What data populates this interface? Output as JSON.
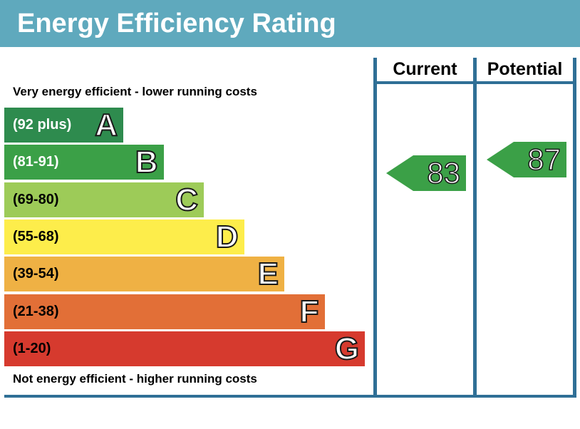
{
  "chart_data": {
    "type": "bar",
    "title": "Energy Efficiency Rating",
    "top_note": "Very energy efficient - lower running costs",
    "bottom_note": "Not energy efficient - higher running costs",
    "columns": [
      "Current",
      "Potential"
    ],
    "bands": [
      {
        "letter": "A",
        "range": "(92 plus)",
        "color": "#2e8b4e",
        "text_color": "#ffffff"
      },
      {
        "letter": "B",
        "range": "(81-91)",
        "color": "#3ba047",
        "text_color": "#ffffff"
      },
      {
        "letter": "C",
        "range": "(69-80)",
        "color": "#9dcb58",
        "text_color": "#000000"
      },
      {
        "letter": "D",
        "range": "(55-68)",
        "color": "#fded4b",
        "text_color": "#000000"
      },
      {
        "letter": "E",
        "range": "(39-54)",
        "color": "#efb144",
        "text_color": "#000000"
      },
      {
        "letter": "F",
        "range": "(21-38)",
        "color": "#e26f37",
        "text_color": "#000000"
      },
      {
        "letter": "G",
        "range": "(1-20)",
        "color": "#d63a2e",
        "text_color": "#000000"
      }
    ],
    "ratings": {
      "current": {
        "value": 83,
        "label": "83",
        "band": "B",
        "color": "#3ba047"
      },
      "potential": {
        "value": 87,
        "label": "87",
        "band": "B",
        "color": "#3ba047"
      }
    }
  }
}
